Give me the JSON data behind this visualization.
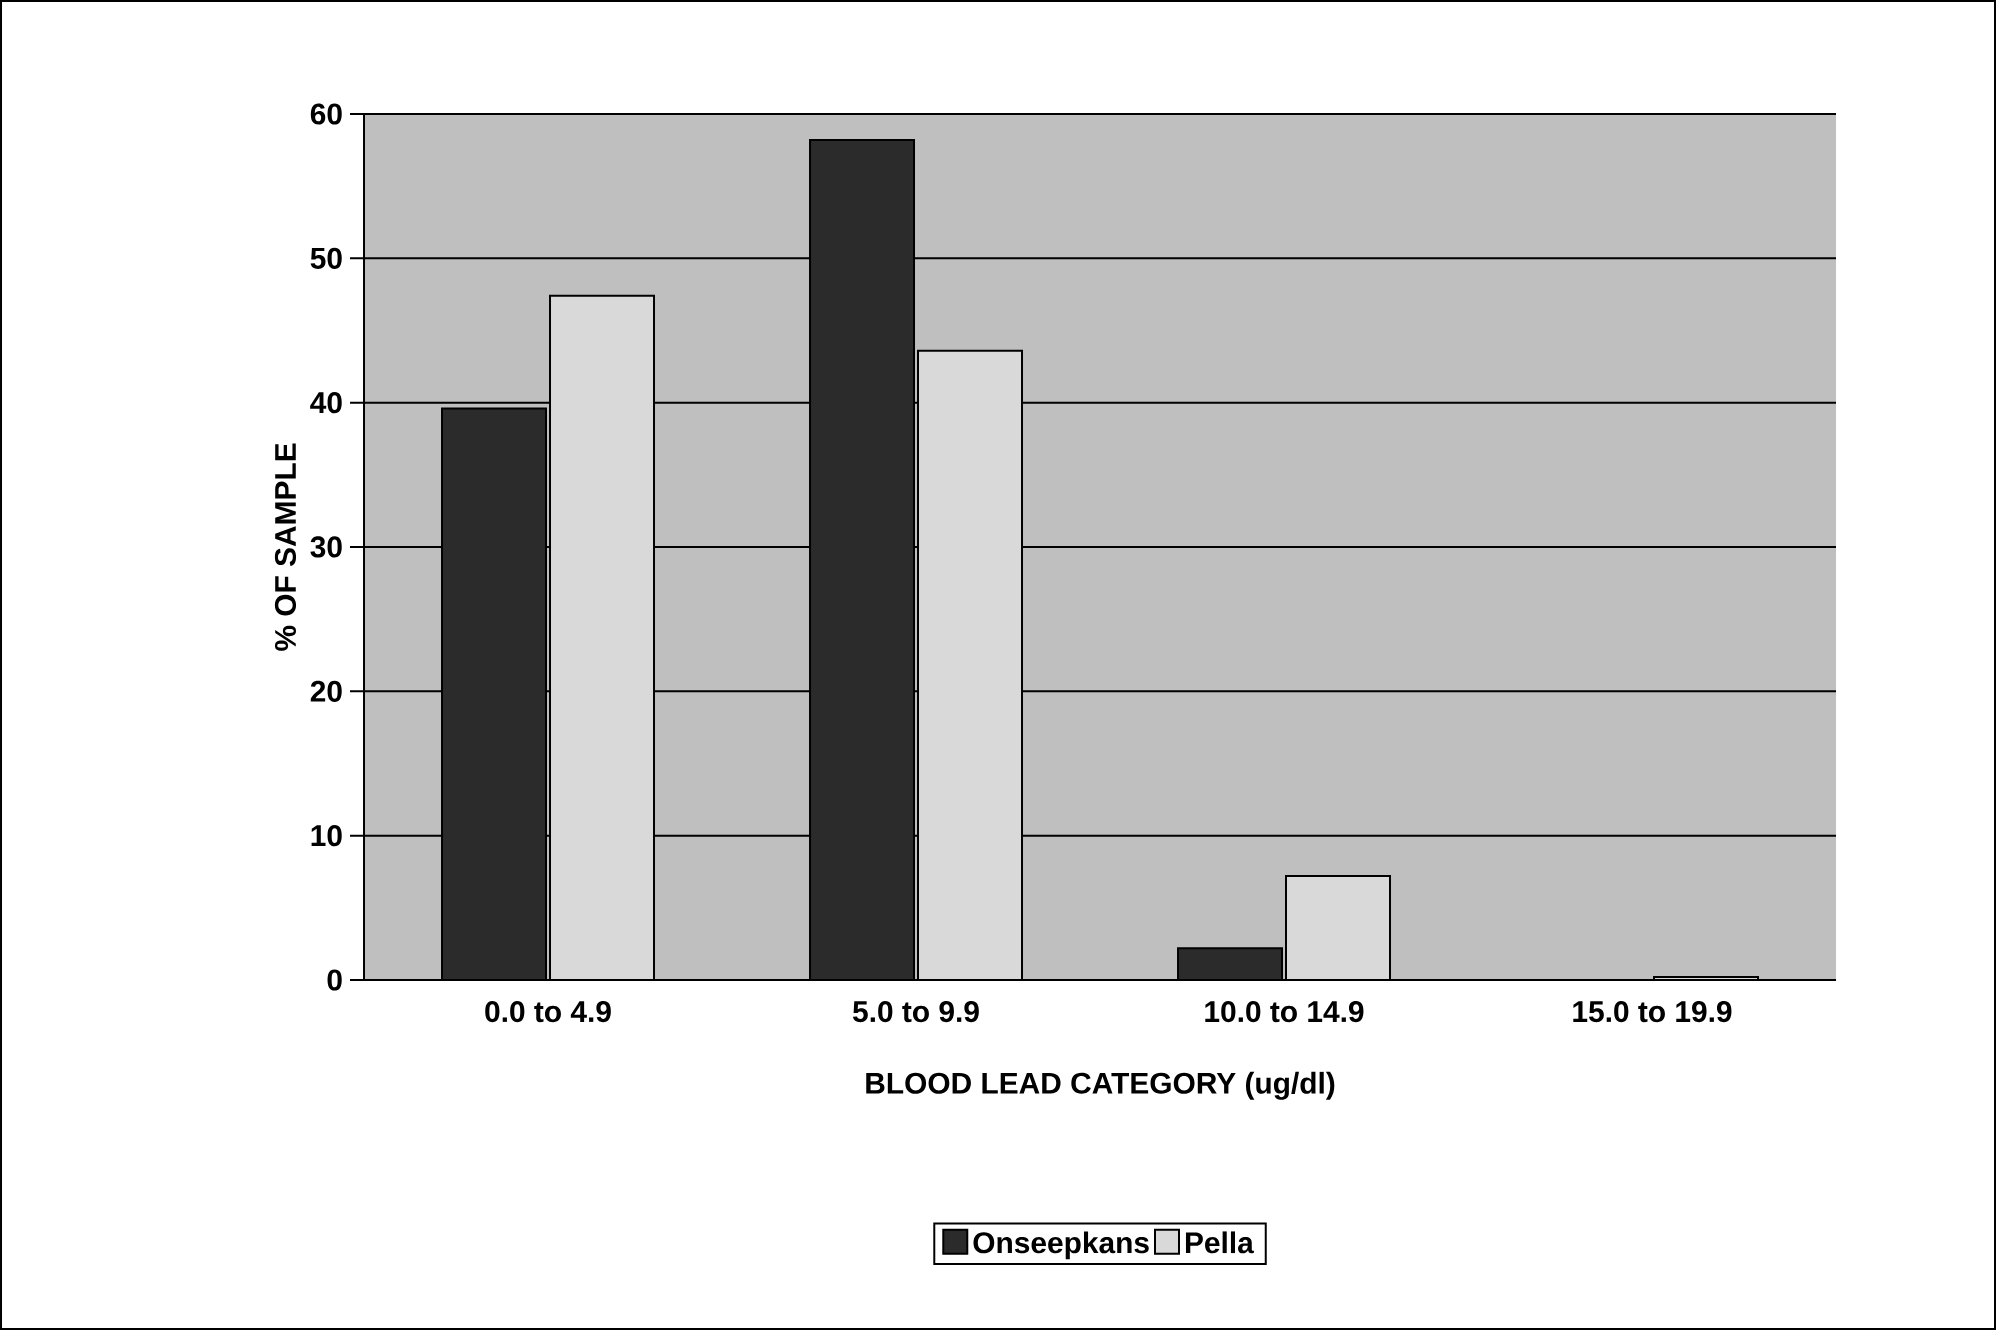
{
  "chart_data": {
    "type": "bar",
    "xlabel": "BLOOD LEAD CATEGORY (ug/dl)",
    "ylabel": "% OF SAMPLE",
    "categories": [
      "0.0 to 4.9",
      "5.0 to 9.9",
      "10.0 to 14.9",
      "15.0 to 19.9"
    ],
    "series": [
      {
        "name": "Onseepkans",
        "color": "#2b2b2b",
        "values": [
          39.6,
          58.2,
          2.2,
          null
        ]
      },
      {
        "name": "Pella",
        "color": "#d9d9d9",
        "values": [
          47.4,
          43.6,
          7.2,
          0.2
        ]
      }
    ],
    "ylim": [
      0,
      60
    ],
    "yticks": [
      0,
      10,
      20,
      30,
      40,
      50,
      60
    ],
    "grid": "y",
    "legend": "bottom"
  }
}
